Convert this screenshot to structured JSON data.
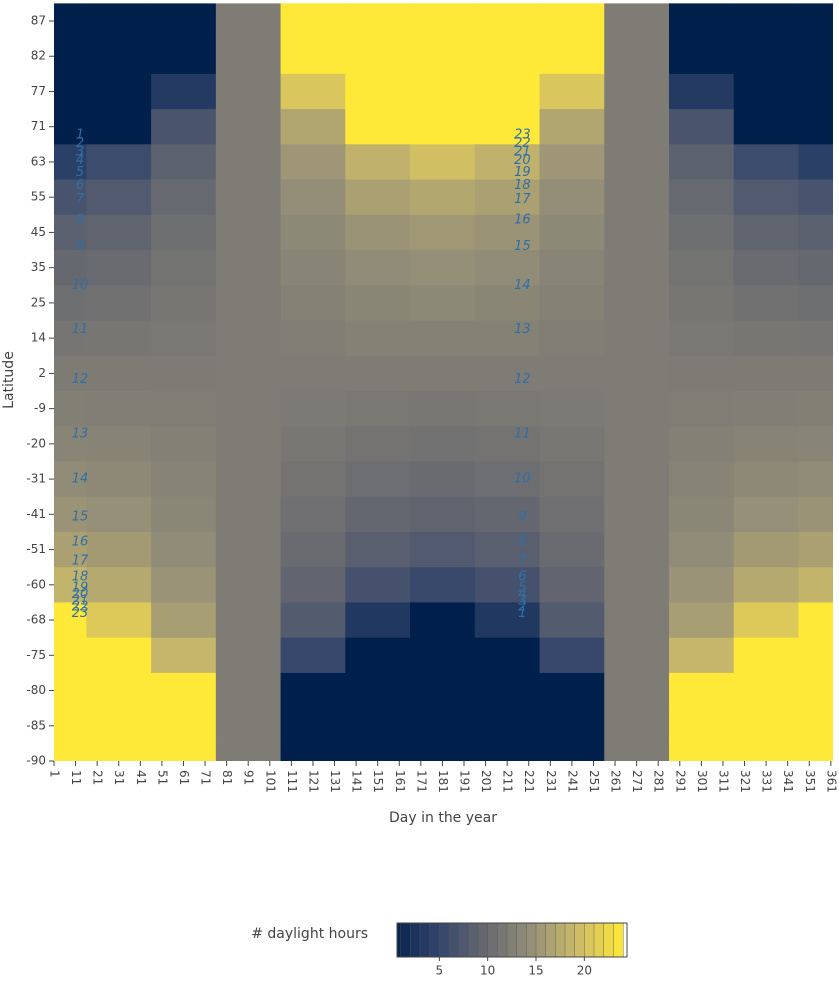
{
  "chart_data": {
    "type": "contour",
    "xaxis_title": "Day in the year",
    "yaxis_title": "Latitude",
    "x": [
      1,
      31,
      61,
      91,
      121,
      151,
      181,
      211,
      241,
      271,
      301,
      331,
      361
    ],
    "y": [
      87,
      82,
      77,
      71,
      63,
      55,
      45,
      35,
      25,
      14,
      2,
      -9,
      -20,
      -31,
      -41,
      -51,
      -60,
      -68,
      -75,
      -80,
      -85,
      -90
    ],
    "z": [
      [
        0,
        0,
        0,
        12,
        24,
        24,
        24,
        24,
        24,
        12,
        0,
        0,
        0
      ],
      [
        0,
        0,
        0,
        12,
        24,
        24,
        24,
        24,
        24,
        12,
        0,
        0,
        0
      ],
      [
        0,
        0,
        3.5,
        12,
        20.5,
        24,
        24,
        24,
        20.5,
        12,
        3.5,
        0,
        0
      ],
      [
        0,
        0,
        7.1,
        12,
        16.9,
        24,
        24,
        24,
        16.9,
        12,
        7.1,
        0,
        0
      ],
      [
        4.2,
        5.8,
        8.8,
        12,
        15.2,
        18.2,
        19.8,
        18.2,
        15.2,
        12,
        8.8,
        5.8,
        4.2
      ],
      [
        6.9,
        7.7,
        9.7,
        12,
        14.3,
        16.3,
        17.1,
        16.3,
        14.3,
        12,
        9.7,
        7.7,
        6.9
      ],
      [
        8.6,
        9.1,
        10.4,
        12,
        13.6,
        14.9,
        15.4,
        14.9,
        13.6,
        12,
        10.4,
        9.1,
        8.6
      ],
      [
        9.6,
        10,
        10.9,
        12,
        13.1,
        14,
        14.4,
        14,
        13.1,
        12,
        10.9,
        10,
        9.6
      ],
      [
        10.4,
        10.7,
        11.3,
        12,
        12.7,
        13.3,
        13.6,
        13.3,
        12.7,
        12,
        11.3,
        10.7,
        10.4
      ],
      [
        11.2,
        11.3,
        11.6,
        12,
        12.4,
        12.7,
        12.8,
        12.7,
        12.4,
        12,
        11.6,
        11.3,
        11.2
      ],
      [
        11.9,
        11.9,
        11.9,
        12,
        12.1,
        12.1,
        12.1,
        12.1,
        12.1,
        12,
        11.9,
        11.9,
        11.9
      ],
      [
        12.5,
        12.4,
        12.2,
        12,
        11.8,
        11.6,
        11.5,
        11.6,
        11.8,
        12,
        12.2,
        12.4,
        12.5
      ],
      [
        13.2,
        13,
        12.6,
        12,
        11.4,
        11,
        10.8,
        11,
        11.4,
        12,
        12.6,
        13,
        13.2
      ],
      [
        14,
        13.7,
        13,
        12,
        11,
        10.3,
        10,
        10.3,
        11,
        12,
        13,
        13.7,
        14
      ],
      [
        14.9,
        14.5,
        13.4,
        12,
        10.6,
        9.5,
        9.1,
        9.5,
        10.6,
        12,
        13.4,
        14.5,
        14.9
      ],
      [
        16.3,
        15.6,
        14,
        12,
        10,
        8.4,
        7.7,
        8.4,
        10,
        12,
        14,
        15.6,
        16.3
      ],
      [
        18.5,
        17.3,
        14.8,
        12,
        9.2,
        6.7,
        5.5,
        6.7,
        9.2,
        12,
        14.8,
        17.3,
        18.5
      ],
      [
        24,
        20.8,
        16.1,
        12,
        7.9,
        3.2,
        0,
        3.2,
        7.9,
        12,
        16.1,
        20.8,
        24
      ],
      [
        24,
        24,
        18.7,
        12,
        5.3,
        0,
        0,
        0,
        5.3,
        12,
        18.7,
        24,
        24
      ],
      [
        24,
        24,
        24,
        12,
        0,
        0,
        0,
        0,
        0,
        12,
        24,
        24,
        24
      ],
      [
        24,
        24,
        24,
        12,
        0,
        0,
        0,
        0,
        0,
        12,
        24,
        24,
        24
      ],
      [
        24,
        24,
        24,
        12,
        0,
        0,
        0,
        0,
        0,
        12,
        24,
        24,
        24
      ]
    ],
    "xlim": [
      1,
      362
    ],
    "xticks": [
      1,
      11,
      21,
      31,
      41,
      51,
      61,
      71,
      81,
      91,
      101,
      111,
      121,
      131,
      141,
      151,
      161,
      171,
      181,
      191,
      201,
      211,
      221,
      231,
      241,
      251,
      261,
      271,
      281,
      291,
      301,
      311,
      321,
      331,
      341,
      351,
      361
    ],
    "colorscale": [
      "#00204c",
      "#31446b",
      "#666870",
      "#958f78",
      "#cbba69",
      "#fee838"
    ],
    "zlim": [
      0,
      24
    ],
    "contour_levels": [
      1,
      2,
      3,
      4,
      5,
      6,
      7,
      8,
      9,
      10,
      11,
      12,
      13,
      14,
      15,
      16,
      17,
      18,
      19,
      20,
      21,
      22,
      23
    ],
    "contour_label_color": "#2f6fa8",
    "colorbar_title": "# daylight hours",
    "colorbar_ticks": [
      5,
      10,
      15,
      20
    ]
  }
}
